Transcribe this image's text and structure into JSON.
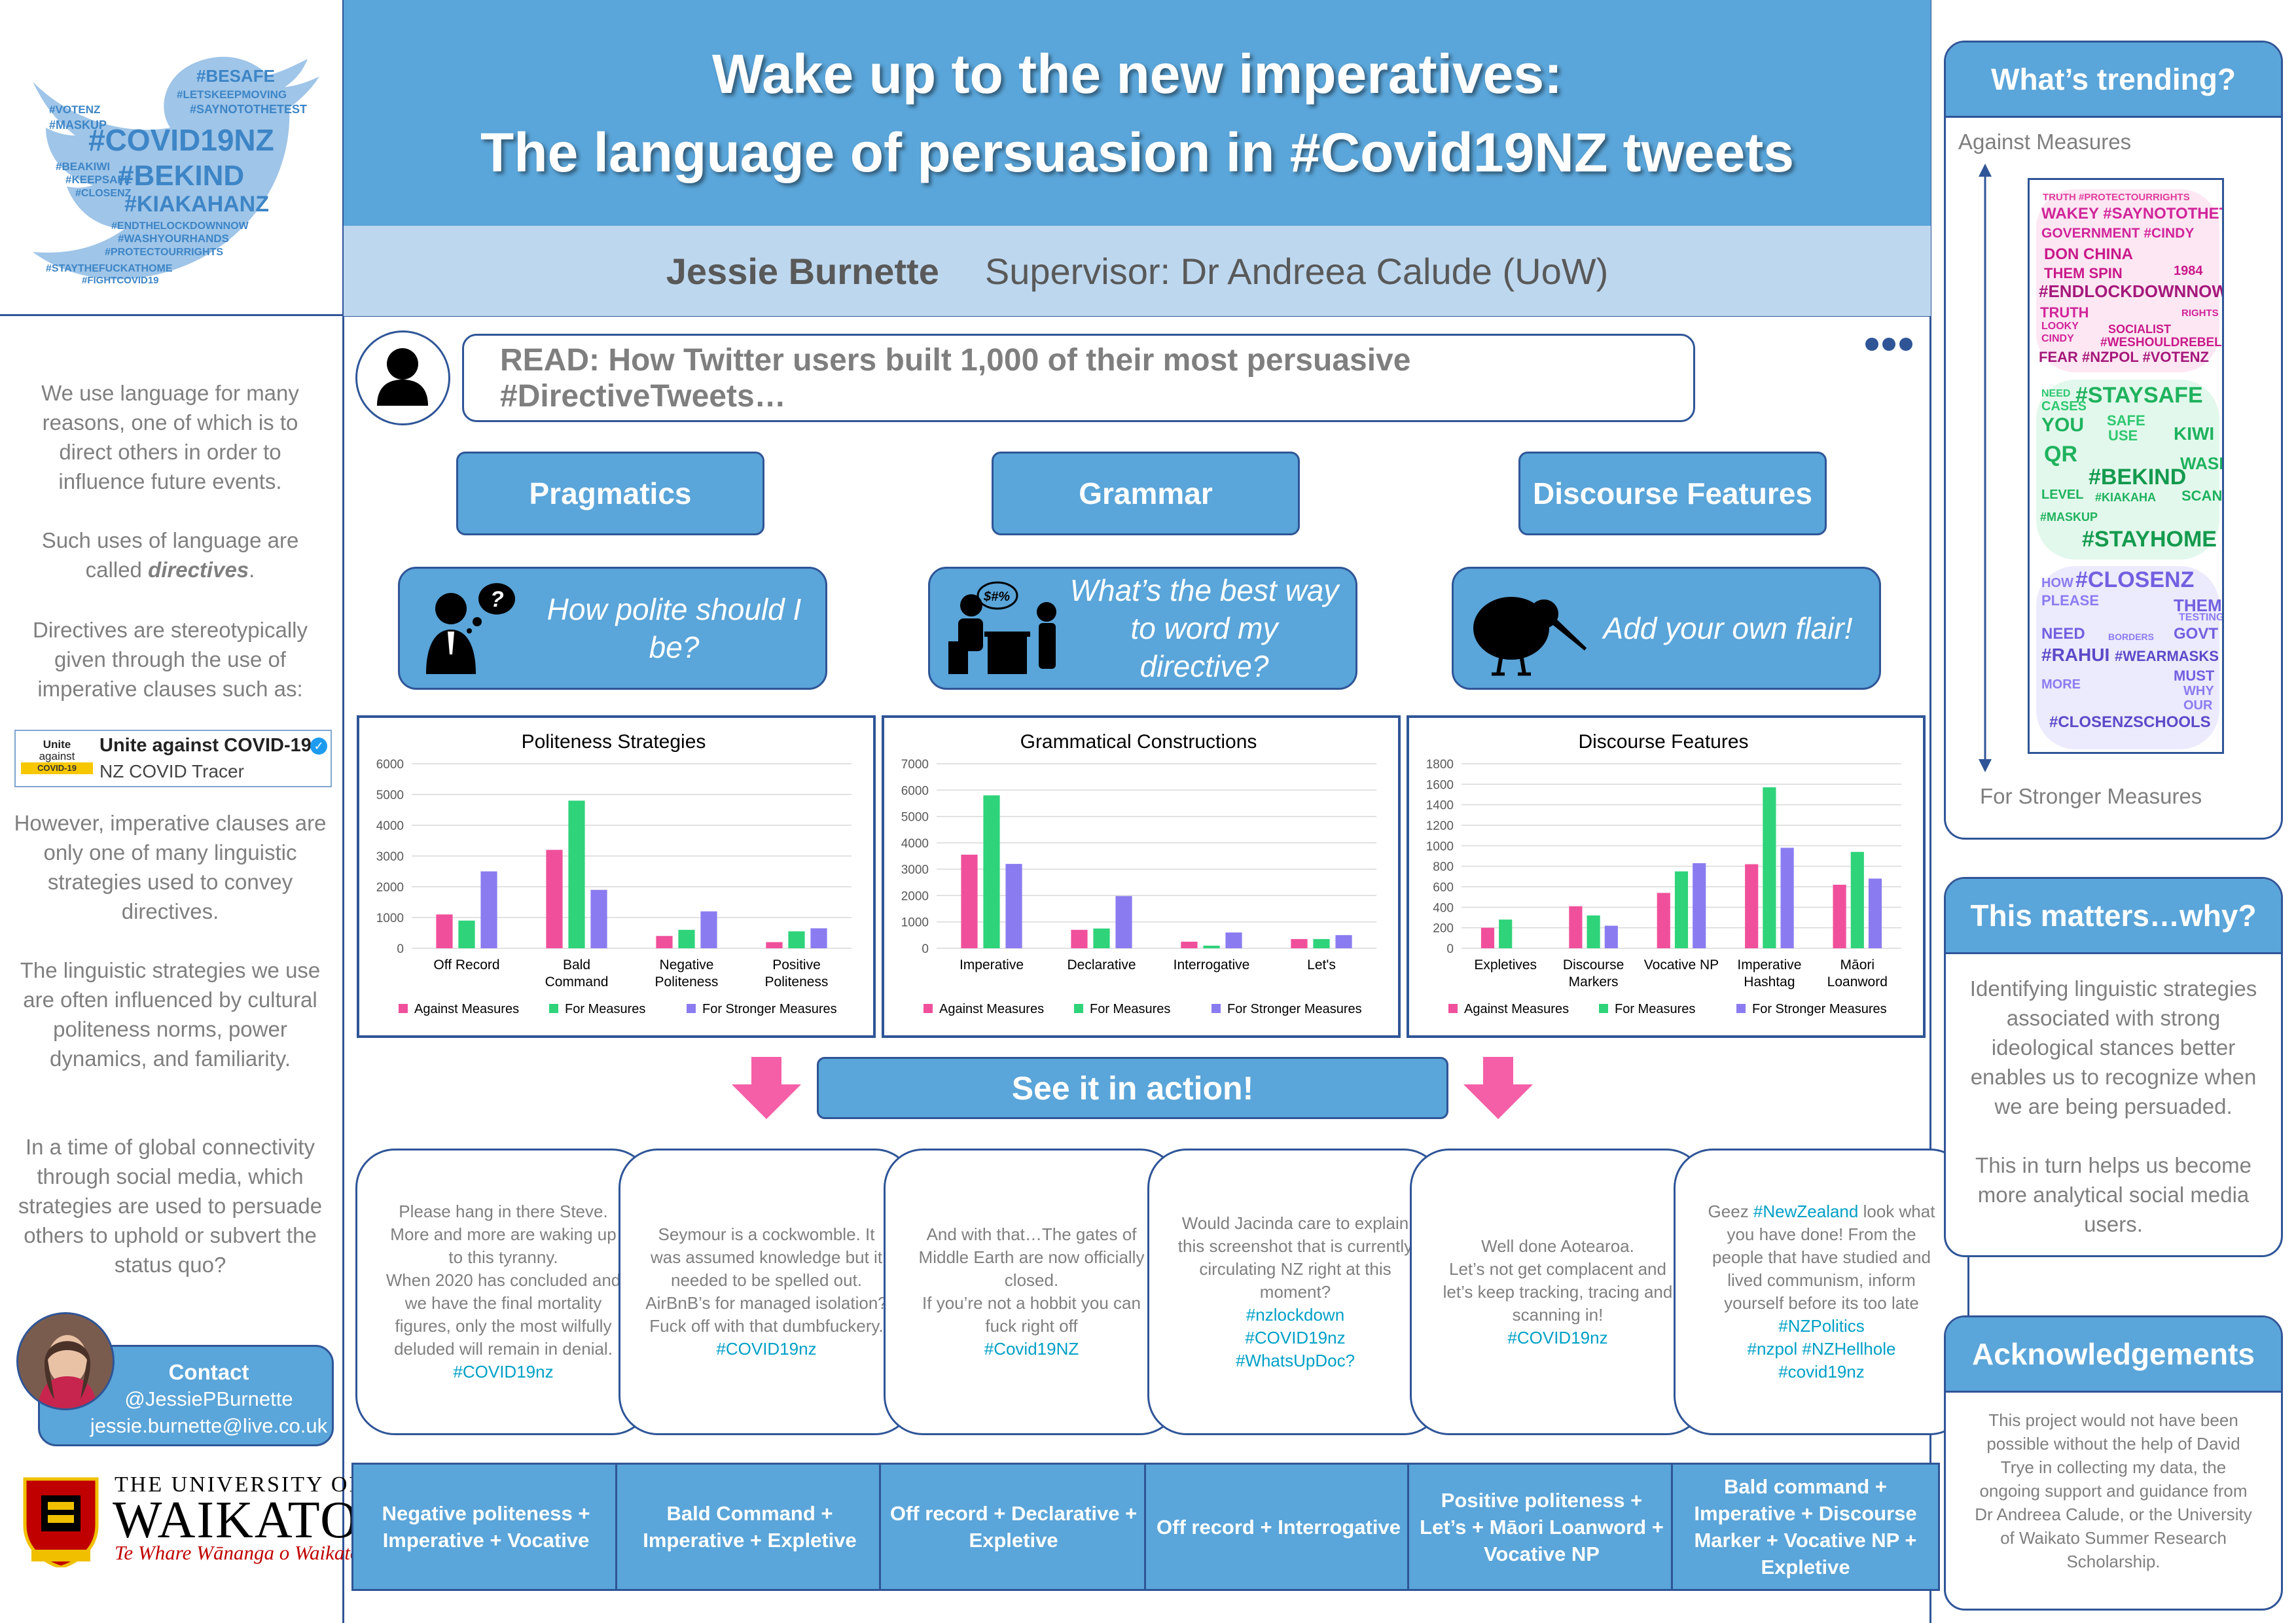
{
  "header": {
    "title_line1": "Wake up to the new imperatives:",
    "title_line2": "The language of persuasion in #Covid19NZ tweets",
    "author": "Jessie Burnette",
    "supervisor": "Supervisor: Dr Andreea Calude (UoW)"
  },
  "bird_words": [
    "#BESAFE",
    "#LETSKEEPMOVING",
    "#SAYNOTOTHETEST",
    "#VOTENZ",
    "#MASKUP",
    "#COVID19NZ",
    "#BEKIND",
    "#KIAKAHANZ",
    "#BEAKIWI",
    "#CLOSENZ",
    "#KEEPSAFE",
    "#ENDTHELOCKDOWNNOW",
    "#WASHYOURHANDS",
    "#PROTECTOURRIGHTS",
    "#STAYTHEFUCKATHOME",
    "#FIGHTCOVID19"
  ],
  "left": {
    "p1": "We use language for many reasons, one of which is to direct others in order to influence future events.",
    "p2_pre": "Such uses of language are called ",
    "p2_em": "directives",
    "p2_post": ".",
    "p3": "Directives are stereotypically given through the use of imperative clauses such as:",
    "app_logo_line1": "Unite",
    "app_logo_line2": "against",
    "app_logo_line3": "COVID-19",
    "app_name": "Unite against COVID-19",
    "app_sub": "NZ COVID Tracer",
    "p4": "However, imperative clauses are only one of many linguistic strategies used to convey directives.",
    "p5": "The linguistic strategies we use are often influenced by cultural politeness norms, power dynamics, and familiarity.",
    "p6": "In a time of global connectivity through social media, which strategies are used to persuade others to uphold or subvert the status quo?",
    "contact_title": "Contact",
    "contact_handle": "@JessiePBurnette",
    "contact_email": "jessie.burnette@live.co.uk"
  },
  "university": {
    "line1": "THE UNIVERSITY OF",
    "line2": "WAIKATO",
    "line3": "Te Whare Wānanga o Waikato"
  },
  "post": {
    "text": "READ: How Twitter users built 1,000 of their most persuasive #DirectiveTweets…"
  },
  "categories": [
    "Pragmatics",
    "Grammar",
    "Discourse Features"
  ],
  "questions": [
    "How polite should I be?",
    "What’s the best way to word my directive?",
    "Add your own flair!"
  ],
  "colors": {
    "against": "#f0509b",
    "for": "#2fd37a",
    "stronger": "#8a7cf0",
    "accent": "#5aa5d9",
    "border": "#2f5597",
    "arrow": "#f55fa8"
  },
  "chart_data": [
    {
      "type": "bar",
      "title": "Politeness Strategies",
      "categories": [
        "Off Record",
        "Bald Command",
        "Negative Politeness",
        "Positive Politeness"
      ],
      "ylim": [
        0,
        6000
      ],
      "yticks": [
        0,
        1000,
        2000,
        3000,
        4000,
        5000,
        6000
      ],
      "series": [
        {
          "name": "Against Measures",
          "values": [
            1100,
            3200,
            400,
            200
          ]
        },
        {
          "name": "For Measures",
          "values": [
            900,
            4800,
            600,
            550
          ]
        },
        {
          "name": "For Stronger Measures",
          "values": [
            2500,
            1900,
            1200,
            650
          ]
        }
      ]
    },
    {
      "type": "bar",
      "title": "Grammatical Constructions",
      "categories": [
        "Imperative",
        "Declarative",
        "Interrogative",
        "Let's"
      ],
      "ylim": [
        0,
        7000
      ],
      "yticks": [
        0,
        1000,
        2000,
        3000,
        4000,
        5000,
        6000,
        7000
      ],
      "series": [
        {
          "name": "Against Measures",
          "values": [
            3550,
            700,
            250,
            350
          ]
        },
        {
          "name": "For Measures",
          "values": [
            5800,
            750,
            100,
            350
          ]
        },
        {
          "name": "For Stronger Measures",
          "values": [
            3200,
            1980,
            600,
            500
          ]
        }
      ]
    },
    {
      "type": "bar",
      "title": "Discourse Features",
      "categories": [
        "Expletives",
        "Discourse Markers",
        "Vocative NP",
        "Imperative Hashtag",
        "Māori Loanword"
      ],
      "ylim": [
        0,
        1800
      ],
      "yticks": [
        0,
        200,
        400,
        600,
        800,
        1000,
        1200,
        1400,
        1600,
        1800
      ],
      "series": [
        {
          "name": "Against Measures",
          "values": [
            200,
            410,
            540,
            820,
            620
          ]
        },
        {
          "name": "For Measures",
          "values": [
            280,
            320,
            750,
            1570,
            940
          ]
        },
        {
          "name": "For Stronger Measures",
          "values": [
            0,
            220,
            830,
            980,
            680
          ]
        }
      ]
    }
  ],
  "action_label": "See it in action!",
  "tweets": [
    {
      "text": "Please hang in there Steve. More and more are waking up to this tyranny.\nWhen 2020 has concluded and we have the final mortality figures, only the most wilfully deluded will remain in denial.",
      "tags": "#COVID19nz",
      "label": "Negative politeness + Imperative + Vocative"
    },
    {
      "text": "Seymour is a cockwomble. It was assumed knowledge but it needed to be spelled out.\nAirBnB’s for managed isolation? Fuck off with that dumbfuckery.",
      "tags": "#COVID19nz",
      "label": "Bald Command + Imperative + Expletive"
    },
    {
      "text": "And with that…The gates of Middle Earth are now officially closed.\nIf you’re not a hobbit you can fuck right off",
      "tags": "#Covid19NZ",
      "label": "Off record + Declarative + Expletive"
    },
    {
      "text": "Would Jacinda care to explain this screenshot that is currently circulating NZ right at this moment?",
      "tags": "#nzlockdown\n#COVID19nz\n#WhatsUpDoc?",
      "label": "Off record + Interrogative"
    },
    {
      "text": "Well done Aotearoa.\nLet’s not get complacent and let’s keep tracking, tracing and scanning in!",
      "tags": "#COVID19nz",
      "label": "Positive politeness + Let’s + Māori Loanword + Vocative NP"
    },
    {
      "text_pre": "Geez ",
      "tag_inline": "#NewZealand",
      "text": " look what you have done! From the people that have studied and lived communism, inform yourself before its too late ",
      "tag_inline2": "#NZPolitics",
      "tags": "#nzpol #NZHellhole\n#covid19nz",
      "label": "Bald command + Imperative + Discourse Marker + Vocative NP + Expletive"
    }
  ],
  "right": {
    "trend_title": "What’s trending?",
    "trend_top": "Against Measures",
    "trend_bottom": "For Stronger Measures",
    "cloud_against": [
      "TRUTH #PROTECTOURRIGHTS",
      "WAKEY #SAYNOTOTHETEST",
      "GOVERNMENT #CINDY",
      "DON CHINA",
      "THEM SPIN",
      "1984",
      "#ENDLOCKDOWNNOW",
      "TRUTH",
      "LOOKY",
      "CINDY",
      "SOCIALIST",
      "#WESHOULDREBEL",
      "FEAR #NZPOL #VOTENZ",
      "RIGHTS"
    ],
    "cloud_for": [
      "#STAYSAFE",
      "CASES",
      "YOU",
      "KIWI",
      "QR",
      "#BEKIND",
      "WASH",
      "SAFE",
      "USE",
      "LEVEL",
      "#STAYHOME",
      "#KIAKAHA",
      "#MASKUP",
      "NEED",
      "SCAN"
    ],
    "cloud_stronger": [
      "#CLOSENZ",
      "HOW",
      "PLEASE",
      "THEM",
      "NEED",
      "GOVT",
      "#RAHUI",
      "#WEARMASKS",
      "MUST",
      "MORE",
      "WHY",
      "OUR",
      "#CLOSENZSCHOOLS",
      "TESTING",
      "BORDERS"
    ],
    "matters_title": "This matters…why?",
    "matters_p1": "Identifying linguistic strategies associated with strong ideological stances better enables us to recognize when we are being persuaded.",
    "matters_p2": "This in turn helps us become more analytical social media users.",
    "ack_title": "Acknowledgements",
    "ack_text": "This project would not have been possible without the help of David Trye in collecting my data, the ongoing support and guidance from Dr Andreea Calude, or the University of Waikato Summer Research Scholarship."
  }
}
